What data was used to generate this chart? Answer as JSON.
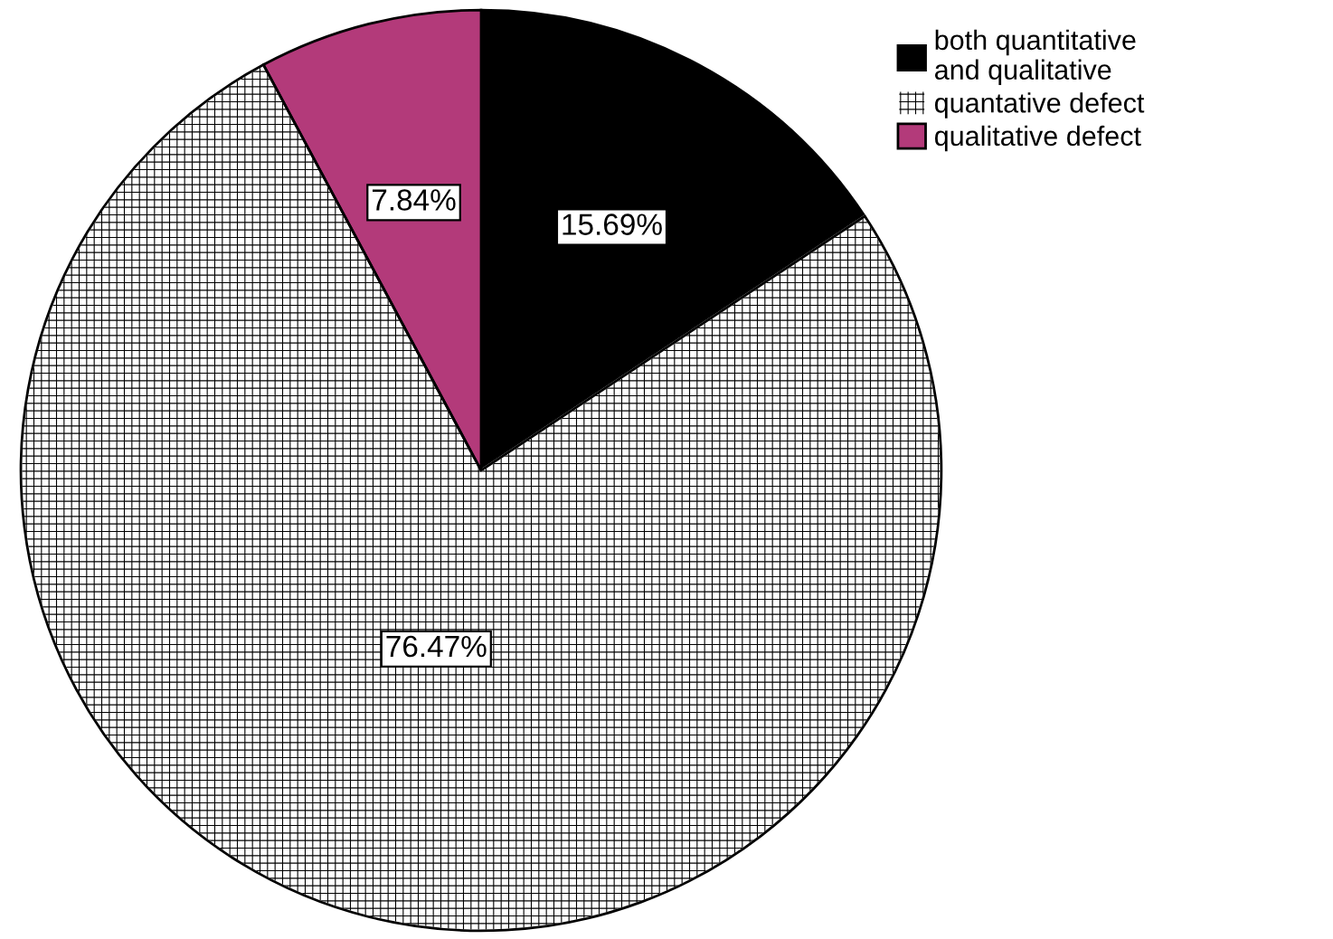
{
  "chart_data": {
    "type": "pie",
    "categories": [
      "both quantitative\nand qualitative",
      "quantative defect",
      "qualitative defect"
    ],
    "values": [
      15.69,
      76.47,
      7.84
    ],
    "colors": [
      "#000000",
      "#ffffff",
      "#b33a7a"
    ],
    "value_labels": [
      "15.69%",
      "76.47%",
      "7.84%"
    ],
    "legend": "top right"
  }
}
